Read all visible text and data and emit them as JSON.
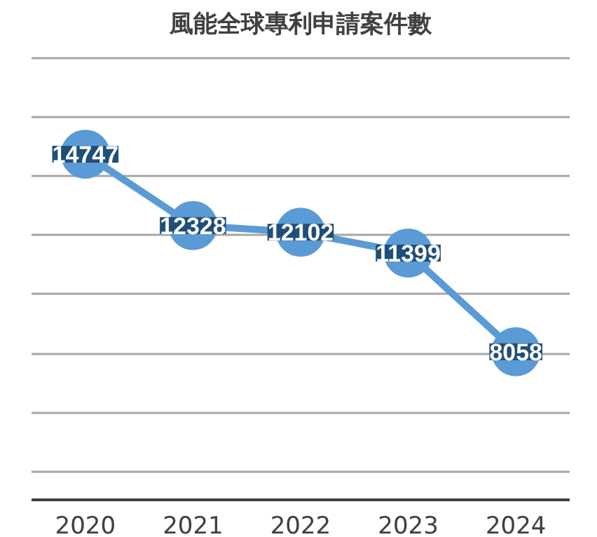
{
  "chart_data": {
    "type": "line",
    "title": "風能全球專利申請案件數",
    "categories": [
      "2020",
      "2021",
      "2022",
      "2023",
      "2024"
    ],
    "series": [
      {
        "color": "#5b9bd5",
        "values": [
          14747,
          12328,
          12102,
          11399,
          8058
        ]
      }
    ],
    "data_labels": true,
    "grid": "y",
    "marker": "circle",
    "line_style": "solid"
  }
}
